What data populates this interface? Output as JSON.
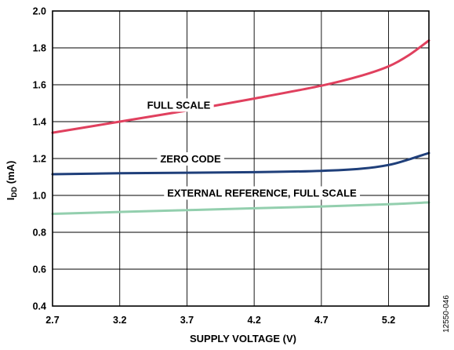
{
  "chart_data": {
    "type": "line",
    "title": "",
    "xlabel": "SUPPLY VOLTAGE (V)",
    "ylabel": {
      "main": "I",
      "sub": "DD",
      "rest": " (mA)"
    },
    "xlim": [
      2.7,
      5.5
    ],
    "ylim": [
      0.4,
      2.0
    ],
    "xticks": [
      2.7,
      3.2,
      3.7,
      4.2,
      4.7,
      5.2
    ],
    "xtick_labels": [
      "2.7",
      "3.2",
      "3.7",
      "4.2",
      "4.7",
      "5.2"
    ],
    "yticks": [
      0.4,
      0.6,
      0.8,
      1.0,
      1.2,
      1.4,
      1.6,
      1.8,
      2.0
    ],
    "ytick_labels": [
      "0.4",
      "0.6",
      "0.8",
      "1.0",
      "1.2",
      "1.4",
      "1.6",
      "1.8",
      "2.0"
    ],
    "grid": true,
    "series": [
      {
        "name": "FULL SCALE",
        "color": "#e0405e",
        "x": [
          2.7,
          3.2,
          3.7,
          4.2,
          4.7,
          5.0,
          5.2,
          5.35,
          5.5
        ],
        "y": [
          1.34,
          1.4,
          1.46,
          1.525,
          1.595,
          1.65,
          1.7,
          1.76,
          1.84
        ]
      },
      {
        "name": "ZERO CODE",
        "color": "#1f3f7a",
        "x": [
          2.7,
          3.2,
          3.7,
          4.2,
          4.7,
          5.0,
          5.2,
          5.35,
          5.5
        ],
        "y": [
          1.115,
          1.12,
          1.123,
          1.126,
          1.133,
          1.145,
          1.165,
          1.195,
          1.23
        ]
      },
      {
        "name": "EXTERNAL REFERENCE, FULL SCALE",
        "color": "#93cfae",
        "x": [
          2.7,
          3.2,
          3.7,
          4.2,
          4.7,
          5.2,
          5.5
        ],
        "y": [
          0.9,
          0.91,
          0.92,
          0.93,
          0.94,
          0.952,
          0.962
        ]
      }
    ],
    "figure_id": "12550-046"
  }
}
